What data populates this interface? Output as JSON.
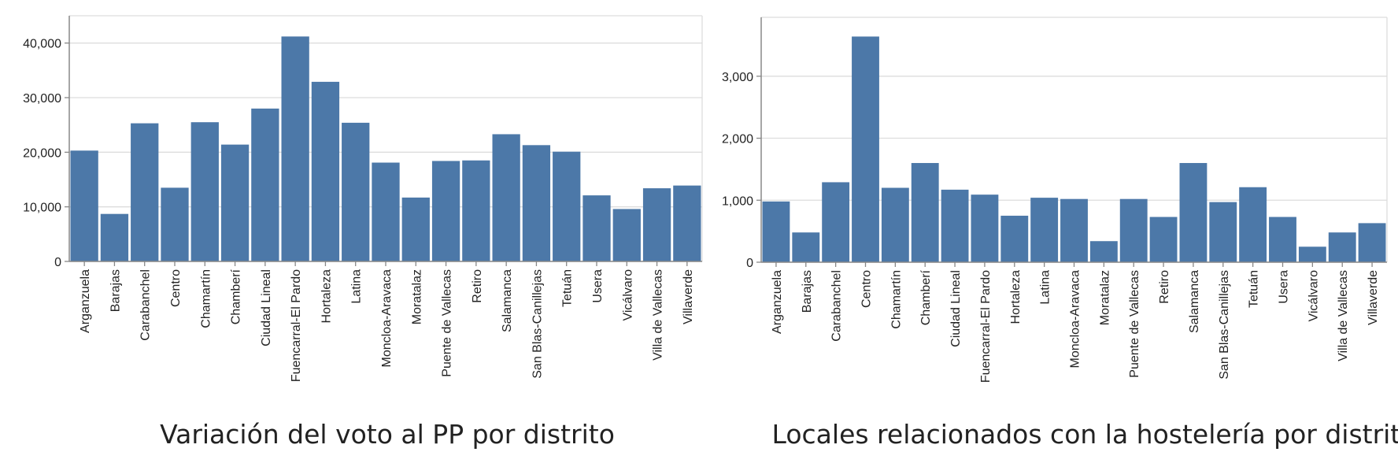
{
  "chart_data": [
    {
      "type": "bar",
      "title": "Variación del voto al PP por distrito",
      "xlabel": "",
      "ylabel": "",
      "ylim": [
        0,
        45000
      ],
      "yticks": [
        0,
        10000,
        20000,
        30000,
        40000
      ],
      "ytick_labels": [
        "0",
        "10,000",
        "20,000",
        "30,000",
        "40,000"
      ],
      "grid": true,
      "bar_color": "#4c78a8",
      "categories": [
        "Arganzuela",
        "Barajas",
        "Carabanchel",
        "Centro",
        "Chamartín",
        "Chamberí",
        "Ciudad Lineal",
        "Fuencarral-El Pardo",
        "Hortaleza",
        "Latina",
        "Moncloa-Aravaca",
        "Moratalaz",
        "Puente de Vallecas",
        "Retiro",
        "Salamanca",
        "San Blas-Canillejas",
        "Tetuán",
        "Usera",
        "Vicálvaro",
        "Villa de Vallecas",
        "Villaverde"
      ],
      "values": [
        20300,
        8700,
        25300,
        13500,
        25500,
        21400,
        28000,
        41200,
        32900,
        25400,
        18100,
        11700,
        18400,
        18500,
        23300,
        21300,
        20100,
        12100,
        9600,
        13400,
        13900
      ]
    },
    {
      "type": "bar",
      "title": "Locales relacionados con la hostelería por distrito",
      "xlabel": "",
      "ylabel": "",
      "ylim": [
        0,
        3950
      ],
      "yticks": [
        0,
        1000,
        2000,
        3000
      ],
      "ytick_labels": [
        "0",
        "1,000",
        "2,000",
        "3,000"
      ],
      "grid": true,
      "bar_color": "#4c78a8",
      "categories": [
        "Arganzuela",
        "Barajas",
        "Carabanchel",
        "Centro",
        "Chamartín",
        "Chamberí",
        "Ciudad Lineal",
        "Fuencarral-El Pardo",
        "Hortaleza",
        "Latina",
        "Moncloa-Aravaca",
        "Moratalaz",
        "Puente de Vallecas",
        "Retiro",
        "Salamanca",
        "San Blas-Canillejas",
        "Tetuán",
        "Usera",
        "Vicálvaro",
        "Villa de Vallecas",
        "Villaverde"
      ],
      "values": [
        980,
        480,
        1290,
        3640,
        1200,
        1600,
        1170,
        1090,
        750,
        1040,
        1020,
        340,
        1020,
        730,
        1600,
        970,
        1210,
        730,
        250,
        480,
        630
      ]
    }
  ]
}
